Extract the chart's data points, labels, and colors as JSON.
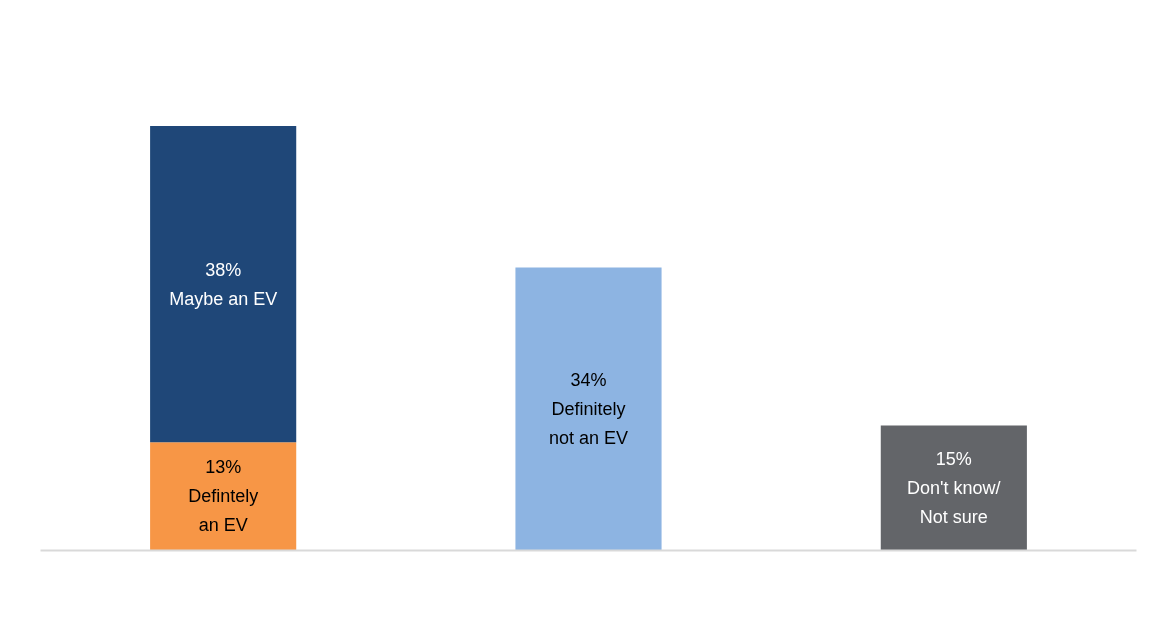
{
  "chart_data": {
    "type": "bar",
    "stacked": true,
    "categories": [
      null,
      null,
      null
    ],
    "series": [
      {
        "name": "Defintely\nan EV",
        "color": "#f79646",
        "values": [
          13,
          null,
          null
        ],
        "value_labels": [
          "13%",
          null,
          null
        ]
      },
      {
        "name": "Maybe an EV",
        "color": "#1f4778",
        "values": [
          38,
          null,
          null
        ],
        "value_labels": [
          "38%",
          null,
          null
        ]
      },
      {
        "name": "Definitely\nnot an EV",
        "color": "#8db4e2",
        "values": [
          null,
          34,
          null
        ],
        "value_labels": [
          null,
          "34%",
          null
        ]
      },
      {
        "name": "Don't know/\nNot sure",
        "color": "#636569",
        "values": [
          null,
          null,
          15
        ],
        "value_labels": [
          null,
          null,
          "15%"
        ]
      }
    ],
    "grid": false
  }
}
